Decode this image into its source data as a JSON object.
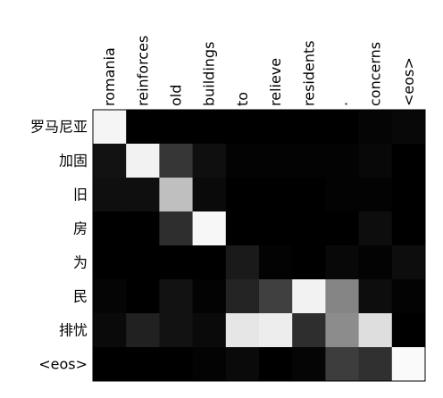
{
  "chart_data": {
    "type": "heatmap",
    "title": "",
    "xlabel": "",
    "ylabel": "",
    "colormap": "grayscale (black = 0, white = 1)",
    "x_labels": [
      "romania",
      "reinforces",
      "old",
      "buildings",
      "to",
      "relieve",
      "residents",
      ".",
      "concerns",
      "<eos>"
    ],
    "y_labels": [
      "罗马尼亚",
      "加固",
      "旧",
      "房",
      "为",
      "民",
      "排忧",
      "<eos>"
    ],
    "values": [
      [
        0.96,
        0.0,
        0.0,
        0.0,
        0.0,
        0.0,
        0.0,
        0.0,
        0.02,
        0.03
      ],
      [
        0.07,
        0.95,
        0.21,
        0.06,
        0.01,
        0.01,
        0.01,
        0.01,
        0.03,
        0.0
      ],
      [
        0.06,
        0.06,
        0.75,
        0.04,
        0.0,
        0.0,
        0.0,
        0.01,
        0.01,
        0.0
      ],
      [
        0.0,
        0.0,
        0.18,
        0.97,
        0.0,
        0.0,
        0.0,
        0.0,
        0.05,
        0.0
      ],
      [
        0.0,
        0.0,
        0.0,
        0.0,
        0.1,
        0.01,
        0.0,
        0.03,
        0.01,
        0.05
      ],
      [
        0.02,
        0.0,
        0.07,
        0.01,
        0.14,
        0.25,
        0.95,
        0.52,
        0.05,
        0.01
      ],
      [
        0.04,
        0.13,
        0.07,
        0.04,
        0.9,
        0.93,
        0.18,
        0.55,
        0.87,
        0.0
      ],
      [
        0.0,
        0.0,
        0.0,
        0.01,
        0.04,
        0.0,
        0.02,
        0.24,
        0.19,
        0.98
      ]
    ]
  }
}
